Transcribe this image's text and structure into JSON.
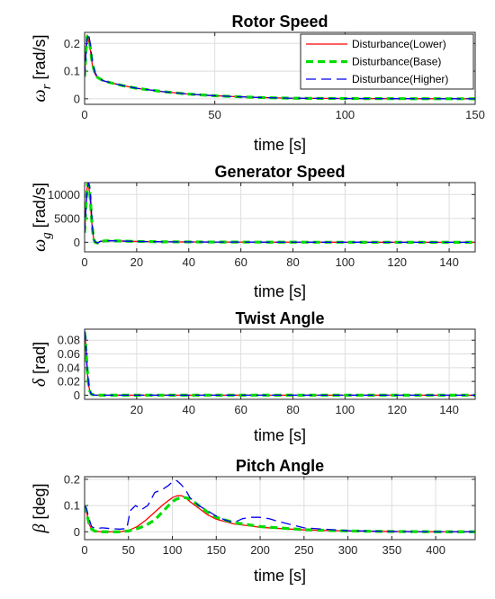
{
  "chart_data": [
    {
      "type": "line",
      "title": "Rotor Speed",
      "xlabel": "time [s]",
      "ylabel_symbol": "ω",
      "ylabel_sub": "r",
      "ylabel_unit": "[rad/s]",
      "xlim": [
        0,
        150
      ],
      "ylim": [
        -0.02,
        0.24
      ],
      "xticks": [
        0,
        50,
        100,
        150
      ],
      "yticks": [
        0,
        0.1,
        0.2
      ],
      "ytick_labels": [
        "0",
        "0.1",
        "0.2"
      ],
      "legend": "top-right",
      "grid": true,
      "series": [
        {
          "name": "Disturbance(Lower)",
          "color": "#ff0000",
          "style": "solid",
          "x": [
            0,
            0.5,
            1,
            1.5,
            2,
            2.5,
            3,
            4,
            5,
            7,
            10,
            15,
            20,
            30,
            40,
            50,
            60,
            70,
            80,
            100,
            120,
            150
          ],
          "y": [
            0.08,
            0.17,
            0.23,
            0.215,
            0.19,
            0.155,
            0.12,
            0.09,
            0.075,
            0.065,
            0.058,
            0.047,
            0.038,
            0.026,
            0.017,
            0.011,
            0.007,
            0.004,
            0.002,
            0.001,
            0.0005,
            0
          ]
        },
        {
          "name": "Disturbance(Base)",
          "color": "#00dd00",
          "style": "dash-thick",
          "x": [
            0,
            0.5,
            1,
            1.5,
            2,
            2.5,
            3,
            4,
            5,
            7,
            10,
            15,
            20,
            30,
            40,
            50,
            60,
            70,
            80,
            100,
            120,
            150
          ],
          "y": [
            0.08,
            0.17,
            0.225,
            0.22,
            0.2,
            0.16,
            0.125,
            0.092,
            0.077,
            0.066,
            0.058,
            0.047,
            0.038,
            0.026,
            0.017,
            0.011,
            0.007,
            0.004,
            0.002,
            0.001,
            0.0005,
            0
          ]
        },
        {
          "name": "Disturbance(Higher)",
          "color": "#0000ee",
          "style": "dash-long",
          "x": [
            0,
            0.5,
            1,
            1.5,
            2,
            2.5,
            3,
            4,
            5,
            7,
            10,
            15,
            20,
            30,
            40,
            50,
            60,
            70,
            80,
            100,
            120,
            150
          ],
          "y": [
            0.08,
            0.16,
            0.215,
            0.235,
            0.21,
            0.17,
            0.13,
            0.095,
            0.078,
            0.066,
            0.058,
            0.047,
            0.038,
            0.026,
            0.017,
            0.011,
            0.007,
            0.004,
            0.002,
            0.001,
            0.0005,
            0
          ]
        }
      ]
    },
    {
      "type": "line",
      "title": "Generator Speed",
      "xlabel": "time [s]",
      "ylabel_symbol": "ω",
      "ylabel_sub": "g",
      "ylabel_unit": "[rad/s]",
      "xlim": [
        0,
        150
      ],
      "ylim": [
        -2000,
        12500
      ],
      "xticks": [
        0,
        20,
        40,
        60,
        80,
        100,
        120,
        140
      ],
      "yticks": [
        0,
        5000,
        10000
      ],
      "ytick_labels": [
        "0",
        "5000",
        "10000"
      ],
      "grid": true,
      "series": [
        {
          "name": "Disturbance(Lower)",
          "color": "#ff0000",
          "style": "solid",
          "x": [
            0,
            0.5,
            1,
            1.5,
            2,
            2.5,
            3,
            3.5,
            4,
            5,
            6,
            8,
            10,
            15,
            20,
            30,
            50,
            80,
            100,
            150
          ],
          "y": [
            2000,
            7000,
            11500,
            12000,
            10000,
            6000,
            2500,
            600,
            0,
            -150,
            200,
            300,
            320,
            250,
            180,
            100,
            50,
            20,
            10,
            0
          ]
        },
        {
          "name": "Disturbance(Base)",
          "color": "#00dd00",
          "style": "dash-thick",
          "x": [
            0,
            0.5,
            1,
            1.5,
            2,
            2.5,
            3,
            3.5,
            4,
            5,
            6,
            8,
            10,
            15,
            20,
            30,
            50,
            80,
            100,
            150
          ],
          "y": [
            2000,
            7500,
            12000,
            12300,
            10500,
            6500,
            2800,
            700,
            0,
            -150,
            200,
            300,
            320,
            250,
            180,
            100,
            50,
            20,
            10,
            0
          ]
        },
        {
          "name": "Disturbance(Higher)",
          "color": "#0000ee",
          "style": "dash-long",
          "x": [
            0,
            0.5,
            1,
            1.5,
            2,
            2.5,
            3,
            3.5,
            4,
            5,
            6,
            8,
            10,
            15,
            20,
            30,
            50,
            80,
            100,
            150
          ],
          "y": [
            2000,
            7000,
            11000,
            12400,
            11500,
            7500,
            3200,
            900,
            100,
            -150,
            200,
            300,
            320,
            250,
            180,
            100,
            50,
            20,
            10,
            0
          ]
        }
      ]
    },
    {
      "type": "line",
      "title": "Twist Angle",
      "xlabel": "time [s]",
      "ylabel_symbol": "δ",
      "ylabel_sub": "",
      "ylabel_unit": "[rad]",
      "xlim": [
        0,
        150
      ],
      "ylim": [
        -0.006,
        0.096
      ],
      "xticks": [
        20,
        40,
        60,
        80,
        100,
        120,
        140
      ],
      "yticks": [
        0,
        0.02,
        0.04,
        0.06,
        0.08
      ],
      "ytick_labels": [
        "0",
        "0.02",
        "0.04",
        "0.06",
        "0.08"
      ],
      "grid": true,
      "series": [
        {
          "name": "Disturbance(Lower)",
          "color": "#ff0000",
          "style": "solid",
          "x": [
            0,
            0.3,
            0.6,
            1,
            1.5,
            2,
            2.5,
            3,
            4,
            6,
            10,
            150
          ],
          "y": [
            0.09,
            0.08,
            0.06,
            0.035,
            0.015,
            0.006,
            0.002,
            0.001,
            0,
            0,
            0,
            0
          ]
        },
        {
          "name": "Disturbance(Base)",
          "color": "#00dd00",
          "style": "dash-thick",
          "x": [
            0,
            0.3,
            0.6,
            1,
            1.5,
            2,
            2.5,
            3,
            4,
            6,
            10,
            150
          ],
          "y": [
            0.092,
            0.082,
            0.062,
            0.037,
            0.016,
            0.006,
            0.002,
            0.001,
            0,
            0,
            0,
            0
          ]
        },
        {
          "name": "Disturbance(Higher)",
          "color": "#0000ee",
          "style": "dash-long",
          "x": [
            0,
            0.3,
            0.6,
            1,
            1.5,
            2,
            2.5,
            3,
            4,
            6,
            10,
            150
          ],
          "y": [
            0.094,
            0.085,
            0.065,
            0.04,
            0.018,
            0.007,
            0.002,
            0.001,
            0,
            0,
            0,
            0
          ]
        }
      ]
    },
    {
      "type": "line",
      "title": "Pitch Angle",
      "xlabel": "time [s]",
      "ylabel_symbol": "β",
      "ylabel_sub": "",
      "ylabel_unit": "[deg]",
      "xlim": [
        0,
        445
      ],
      "ylim": [
        -0.03,
        0.21
      ],
      "xticks": [
        0,
        50,
        100,
        150,
        200,
        250,
        300,
        350,
        400
      ],
      "yticks": [
        0,
        0.1,
        0.2
      ],
      "ytick_labels": [
        "0",
        "0.1",
        "0.2"
      ],
      "grid": true,
      "series": [
        {
          "name": "Disturbance(Lower)",
          "color": "#ff0000",
          "style": "solid",
          "x": [
            0,
            2,
            5,
            8,
            12,
            20,
            30,
            40,
            50,
            60,
            70,
            80,
            90,
            100,
            105,
            110,
            115,
            120,
            130,
            140,
            150,
            170,
            200,
            250,
            300,
            350,
            400,
            445
          ],
          "y": [
            0.1,
            0.08,
            0.03,
            0.01,
            0.002,
            0,
            0,
            0,
            0.005,
            0.02,
            0.045,
            0.075,
            0.105,
            0.13,
            0.137,
            0.138,
            0.13,
            0.115,
            0.09,
            0.065,
            0.048,
            0.03,
            0.017,
            0.007,
            0.003,
            0.001,
            0,
            0
          ]
        },
        {
          "name": "Disturbance(Base)",
          "color": "#00dd00",
          "style": "dash-thick",
          "x": [
            0,
            2,
            5,
            8,
            12,
            20,
            30,
            40,
            50,
            60,
            70,
            80,
            90,
            100,
            105,
            110,
            115,
            120,
            130,
            140,
            150,
            170,
            200,
            250,
            300,
            350,
            400,
            445
          ],
          "y": [
            0.1,
            0.08,
            0.03,
            0.01,
            0.002,
            0,
            0,
            0,
            0.003,
            0.012,
            0.025,
            0.045,
            0.08,
            0.115,
            0.125,
            0.13,
            0.13,
            0.125,
            0.1,
            0.075,
            0.055,
            0.035,
            0.02,
            0.008,
            0.003,
            0.001,
            0,
            0
          ]
        },
        {
          "name": "Disturbance(Higher)",
          "color": "#0000ee",
          "style": "dash-long",
          "x": [
            0,
            2,
            5,
            8,
            12,
            20,
            30,
            40,
            48,
            52,
            58,
            65,
            72,
            80,
            88,
            95,
            100,
            105,
            110,
            115,
            120,
            130,
            140,
            150,
            160,
            170,
            180,
            190,
            200,
            210,
            220,
            250,
            300,
            350,
            400,
            445
          ],
          "y": [
            0.1,
            0.09,
            0.05,
            0.02,
            0.012,
            0.015,
            0.012,
            0.01,
            0.012,
            0.08,
            0.1,
            0.085,
            0.1,
            0.15,
            0.16,
            0.175,
            0.19,
            0.195,
            0.18,
            0.16,
            0.13,
            0.1,
            0.08,
            0.06,
            0.045,
            0.035,
            0.05,
            0.055,
            0.055,
            0.05,
            0.04,
            0.015,
            0.004,
            0.001,
            0,
            0
          ]
        }
      ]
    }
  ]
}
